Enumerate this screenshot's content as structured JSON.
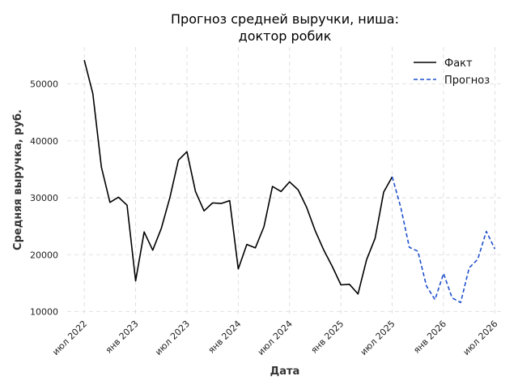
{
  "chart_data": {
    "type": "line",
    "title": [
      "Прогноз средней выручки, ниша:",
      "доктор робик"
    ],
    "xlabel": "Дата",
    "ylabel": "Средняя выручка, руб.",
    "ylim": [
      9500,
      56500
    ],
    "yticks": [
      10000,
      20000,
      30000,
      40000,
      50000
    ],
    "ytick_labels": [
      "10000",
      "20000",
      "30000",
      "40000",
      "50000"
    ],
    "xticks": [
      "2022-07",
      "2023-01",
      "2023-07",
      "2024-01",
      "2024-07",
      "2025-01",
      "2025-07",
      "2026-01",
      "2026-07"
    ],
    "xtick_labels": [
      "июл 2022",
      "янв 2023",
      "июл 2023",
      "янв 2024",
      "июл 2024",
      "янв 2025",
      "июл 2025",
      "янв 2026",
      "июл 2026"
    ],
    "xlim": [
      "2022-05",
      "2026-08"
    ],
    "grid": true,
    "legend_position": "top-right",
    "series": [
      {
        "name": "Факт",
        "color": "#000000",
        "style": "solid",
        "x": [
          "2022-07",
          "2022-08",
          "2022-09",
          "2022-10",
          "2022-11",
          "2022-12",
          "2023-01",
          "2023-02",
          "2023-03",
          "2023-04",
          "2023-05",
          "2023-06",
          "2023-07",
          "2023-08",
          "2023-09",
          "2023-10",
          "2023-11",
          "2023-12",
          "2024-01",
          "2024-02",
          "2024-03",
          "2024-04",
          "2024-05",
          "2024-06",
          "2024-07",
          "2024-08",
          "2024-09",
          "2024-10",
          "2024-11",
          "2024-12",
          "2025-01",
          "2025-02",
          "2025-03",
          "2025-04",
          "2025-05",
          "2025-06",
          "2025-07"
        ],
        "values": [
          54200,
          48300,
          35400,
          29200,
          30100,
          28700,
          15400,
          24000,
          20800,
          24600,
          30000,
          36600,
          38100,
          31100,
          27700,
          29100,
          29000,
          29500,
          17500,
          21800,
          21200,
          24900,
          32000,
          31100,
          32800,
          31400,
          28300,
          24200,
          20800,
          17900,
          14700,
          14800,
          13100,
          19100,
          22900,
          31000,
          33700
        ]
      },
      {
        "name": "Прогноз",
        "color": "#1f4fcc",
        "style": "dashed",
        "x": [
          "2025-07",
          "2025-08",
          "2025-09",
          "2025-10",
          "2025-11",
          "2025-12",
          "2026-01",
          "2026-02",
          "2026-03",
          "2026-04",
          "2026-05",
          "2026-06",
          "2026-07"
        ],
        "values": [
          33700,
          28300,
          21300,
          20600,
          14500,
          12100,
          16700,
          12400,
          11600,
          17700,
          19200,
          24100,
          21000
        ]
      }
    ]
  }
}
